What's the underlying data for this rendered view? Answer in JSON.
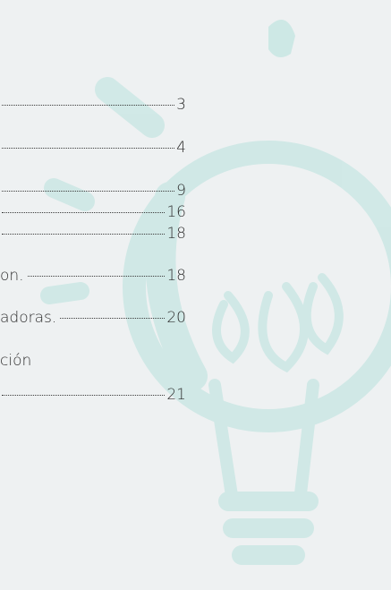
{
  "toc": {
    "entries": [
      {
        "page": 3
      },
      {
        "page": 4
      },
      {
        "page": 9
      },
      {
        "page": 16
      },
      {
        "page": 18
      },
      {
        "text": "on.",
        "page": 18
      },
      {
        "text": "adoras.",
        "page": 20
      },
      {
        "text": "ción"
      },
      {
        "page": 21
      }
    ]
  }
}
